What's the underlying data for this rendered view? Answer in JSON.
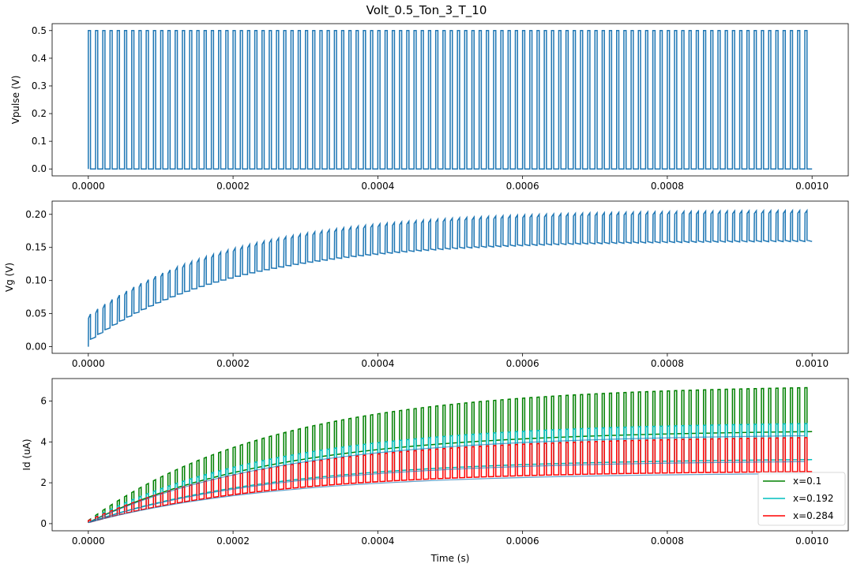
{
  "figure": {
    "title": "Volt_0.5_Ton_3_T_10"
  },
  "chart_data": [
    {
      "type": "line",
      "ylabel": "Vpulse (V)",
      "xlabel": "",
      "xlim": [
        -5e-05,
        0.00105
      ],
      "ylim": [
        -0.025,
        0.525
      ],
      "xticks": [
        "0.0000",
        "0.0002",
        "0.0004",
        "0.0006",
        "0.0008",
        "0.0010"
      ],
      "yticks": [
        "0.0",
        "0.1",
        "0.2",
        "0.3",
        "0.4",
        "0.5"
      ],
      "signal": {
        "period": 1e-05,
        "on_time": 3e-06,
        "pulses": 100,
        "high": 0.5,
        "low": 0.0,
        "t_end": 0.001
      },
      "series": [
        {
          "color": "#1f77b4"
        }
      ]
    },
    {
      "type": "line",
      "ylabel": "Vg (V)",
      "xlabel": "",
      "xlim": [
        -5e-05,
        0.00105
      ],
      "ylim": [
        -0.01,
        0.22
      ],
      "xticks": [
        "0.0000",
        "0.0002",
        "0.0004",
        "0.0006",
        "0.0008",
        "0.0010"
      ],
      "yticks": [
        "0.00",
        "0.05",
        "0.10",
        "0.15",
        "0.20"
      ],
      "envelope": {
        "low_start": 0.007,
        "low_end": 0.16,
        "high_start": 0.047,
        "high_end": 0.207,
        "tau": 0.0002
      },
      "series": [
        {
          "color": "#1f77b4"
        }
      ]
    },
    {
      "type": "line",
      "ylabel": "Id (uA)",
      "xlabel": "Time (s)",
      "xlim": [
        -5e-05,
        0.00105
      ],
      "ylim": [
        -0.35,
        7.1
      ],
      "xticks": [
        "0.0000",
        "0.0002",
        "0.0004",
        "0.0006",
        "0.0008",
        "0.0010"
      ],
      "yticks": [
        "0",
        "2",
        "4",
        "6"
      ],
      "legend_position": "bottom-right",
      "series": [
        {
          "name": "x=0.1",
          "color": "#008000",
          "high_end": 6.8,
          "low_end": 4.6,
          "trend_end": 4.4
        },
        {
          "name": "x=0.192",
          "color": "#00bfbf",
          "high_end": 5.0,
          "low_end": 3.2,
          "trend_end": 3.1
        },
        {
          "name": "x=0.284",
          "color": "#ff0000",
          "high_end": 4.3,
          "low_end": 2.6,
          "trend_end": 2.5
        }
      ],
      "tau": 0.00026
    }
  ]
}
